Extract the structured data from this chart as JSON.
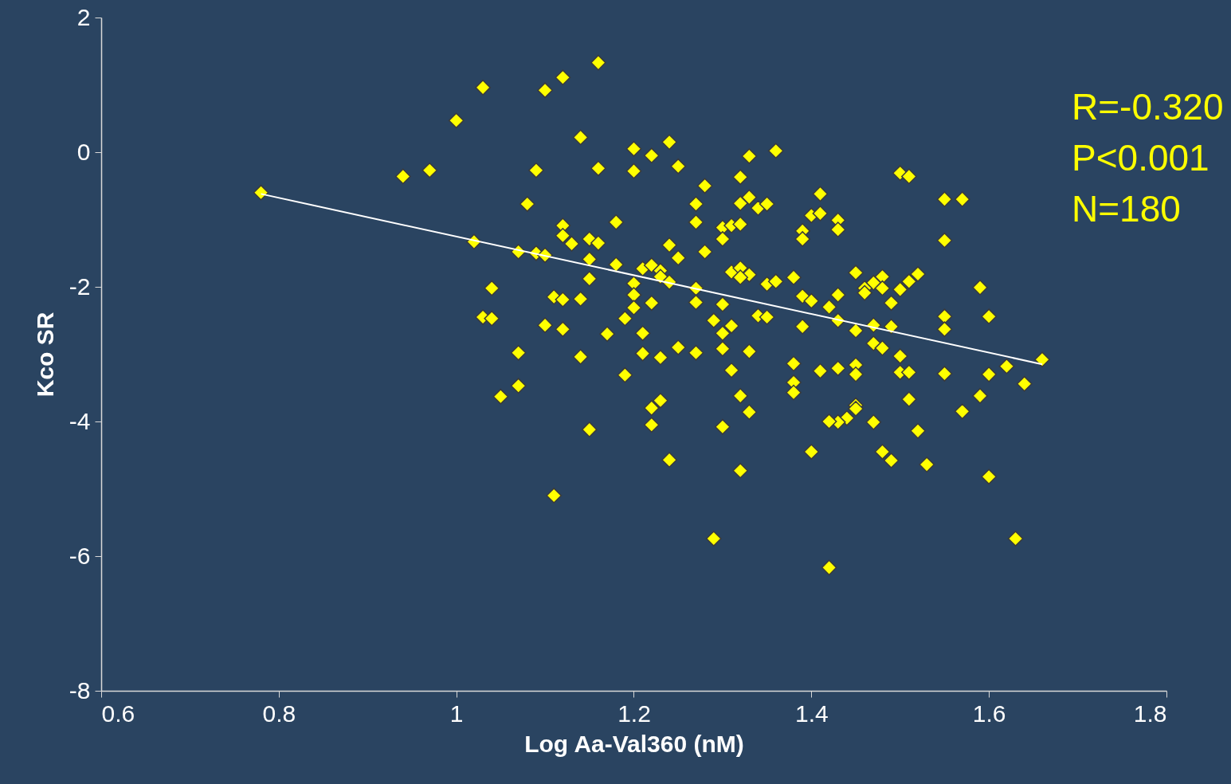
{
  "chart_data": {
    "type": "scatter",
    "xlabel": "Log Aa-Val360 (nM)",
    "ylabel": "Kco SR",
    "xlim": [
      0.6,
      1.8
    ],
    "xticks": [
      0.6,
      0.8,
      1,
      1.2,
      1.4,
      1.6,
      1.8
    ],
    "ylim": [
      -8,
      2
    ],
    "yticks": [
      -8,
      -6,
      -4,
      -2,
      0,
      2
    ],
    "grid": false,
    "annotations": [
      "R=-0.320",
      "P<0.001",
      "N=180"
    ],
    "series": [
      {
        "marker": "diamond",
        "color": "#ffff00",
        "x": [
          0.78,
          0.94,
          0.97,
          1.0,
          1.03,
          1.1,
          1.12,
          1.16,
          1.14,
          1.16,
          1.09,
          1.08,
          1.2,
          1.2,
          1.22,
          1.24,
          1.25,
          1.33,
          1.36,
          1.32,
          1.28,
          1.27,
          1.33,
          1.32,
          1.34,
          1.35,
          1.27,
          1.41,
          1.4,
          1.41,
          1.43,
          1.43,
          1.39,
          1.39,
          1.3,
          1.31,
          1.32,
          1.3,
          1.12,
          1.12,
          1.13,
          1.15,
          1.16,
          1.18,
          1.02,
          1.07,
          1.09,
          1.1,
          1.15,
          1.18,
          1.24,
          1.25,
          1.28,
          1.21,
          1.22,
          1.23,
          1.23,
          1.24,
          1.15,
          1.2,
          1.2,
          1.2,
          1.22,
          1.27,
          1.27,
          1.31,
          1.32,
          1.33,
          1.32,
          1.35,
          1.36,
          1.38,
          1.39,
          1.45,
          1.48,
          1.47,
          1.46,
          1.46,
          1.48,
          1.5,
          1.51,
          1.52,
          1.49,
          1.43,
          1.42,
          1.4,
          1.04,
          1.03,
          1.04,
          1.11,
          1.12,
          1.14,
          1.19,
          1.3,
          1.29,
          1.34,
          1.35,
          1.31,
          1.3,
          1.39,
          1.43,
          1.45,
          1.47,
          1.49,
          1.55,
          1.55,
          1.59,
          1.6,
          1.55,
          1.55,
          1.57,
          1.5,
          1.51,
          1.1,
          1.12,
          1.17,
          1.21,
          1.07,
          1.14,
          1.21,
          1.23,
          1.25,
          1.27,
          1.3,
          1.33,
          1.47,
          1.48,
          1.5,
          1.38,
          1.41,
          1.43,
          1.45,
          1.45,
          1.5,
          1.51,
          1.55,
          1.6,
          1.62,
          1.64,
          1.66,
          1.31,
          1.19,
          1.07,
          1.05,
          1.38,
          1.38,
          1.32,
          1.23,
          1.22,
          1.33,
          1.45,
          1.45,
          1.44,
          1.43,
          1.42,
          1.47,
          1.51,
          1.57,
          1.59,
          1.22,
          1.15,
          1.3,
          1.52,
          1.4,
          1.48,
          1.49,
          1.53,
          1.24,
          1.6,
          1.32,
          1.11,
          1.29,
          1.63,
          1.42
        ],
        "values": [
          -0.6,
          -0.36,
          -0.27,
          0.47,
          0.96,
          0.92,
          1.11,
          1.33,
          0.22,
          -0.24,
          -0.27,
          -0.77,
          0.05,
          -0.28,
          -0.05,
          0.15,
          -0.21,
          -0.06,
          0.02,
          -0.37,
          -0.5,
          -0.77,
          -0.67,
          -0.76,
          -0.83,
          -0.77,
          -1.04,
          -0.62,
          -0.94,
          -0.91,
          -1.01,
          -1.15,
          -1.17,
          -1.29,
          -1.12,
          -1.09,
          -1.07,
          -1.29,
          -1.09,
          -1.24,
          -1.36,
          -1.29,
          -1.35,
          -1.04,
          -1.33,
          -1.48,
          -1.5,
          -1.53,
          -1.59,
          -1.67,
          -1.38,
          -1.57,
          -1.48,
          -1.73,
          -1.68,
          -1.76,
          -1.85,
          -1.93,
          -1.88,
          -1.95,
          -2.12,
          -2.31,
          -2.24,
          -2.02,
          -2.23,
          -1.78,
          -1.72,
          -1.82,
          -1.86,
          -1.96,
          -1.92,
          -1.86,
          -2.14,
          -1.79,
          -1.85,
          -1.94,
          -2.02,
          -2.09,
          -2.02,
          -2.04,
          -1.92,
          -1.81,
          -2.24,
          -2.12,
          -2.3,
          -2.21,
          -2.02,
          -2.45,
          -2.47,
          -2.15,
          -2.19,
          -2.18,
          -2.47,
          -2.26,
          -2.5,
          -2.43,
          -2.45,
          -2.58,
          -2.69,
          -2.59,
          -2.5,
          -2.65,
          -2.57,
          -2.59,
          -2.44,
          -2.63,
          -2.01,
          -2.44,
          -1.31,
          -0.7,
          -0.7,
          -0.31,
          -0.36,
          -2.57,
          -2.63,
          -2.7,
          -2.69,
          -2.98,
          -3.04,
          -2.99,
          -3.05,
          -2.9,
          -2.98,
          -2.92,
          -2.96,
          -2.84,
          -2.91,
          -3.03,
          -3.14,
          -3.25,
          -3.21,
          -3.16,
          -3.3,
          -3.27,
          -3.27,
          -3.29,
          -3.3,
          -3.18,
          -3.44,
          -3.08,
          -3.24,
          -3.31,
          -3.47,
          -3.63,
          -3.42,
          -3.57,
          -3.62,
          -3.69,
          -3.8,
          -3.86,
          -3.76,
          -3.81,
          -3.95,
          -4.01,
          -4.0,
          -4.01,
          -3.67,
          -3.85,
          -3.62,
          -4.05,
          -4.12,
          -4.08,
          -4.14,
          -4.45,
          -4.45,
          -4.58,
          -4.64,
          -4.57,
          -4.82,
          -4.73,
          -5.1,
          -5.74,
          -5.74,
          -6.17
        ]
      },
      {
        "type": "line",
        "marker": "none",
        "line_style": "solid",
        "color": "#ffffff",
        "x": [
          0.78,
          1.66
        ],
        "values": [
          -0.62,
          -3.15
        ]
      }
    ]
  }
}
